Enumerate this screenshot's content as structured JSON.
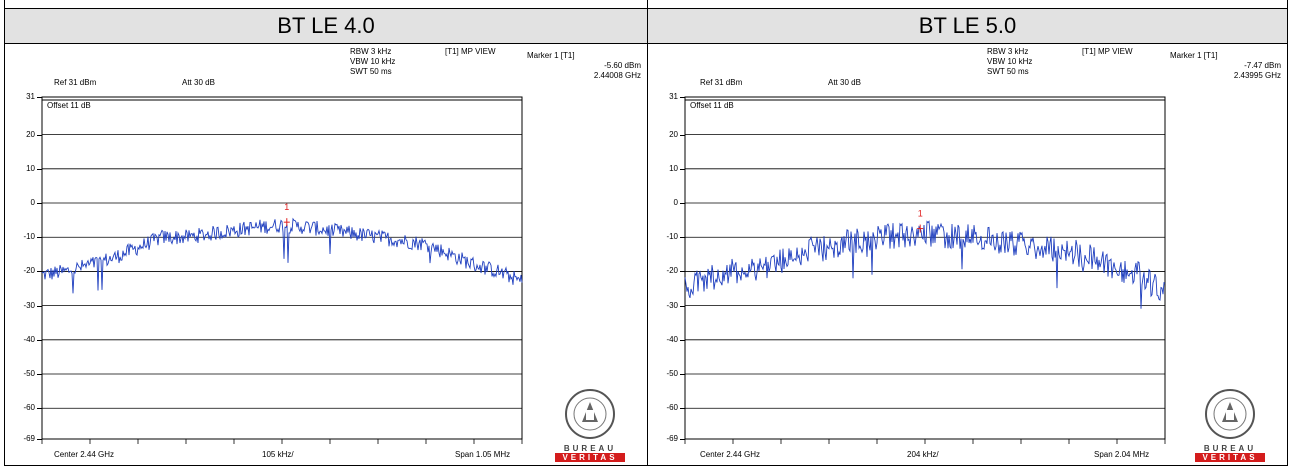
{
  "panels": [
    {
      "title": "BT LE 4.0",
      "ref": "Ref 31 dBm",
      "att": "Att  30 dB",
      "rbw": "RBW 3 kHz",
      "vbw": "VBW 10 kHz",
      "swt": "SWT 50 ms",
      "view": "[T1] MP VIEW",
      "marker_title": "Marker 1 [T1]",
      "marker_level": "-5.60 dBm",
      "marker_freq": "2.44008 GHz",
      "offset": "Offset 11 dB",
      "center": "Center 2.44 GHz",
      "per_div": "105 kHz/",
      "span": "Span 1.05 MHz",
      "marker_label": "1",
      "logo_text": "BUREAU VERITAS"
    },
    {
      "title": "BT LE 5.0",
      "ref": "Ref 31 dBm",
      "att": "Att  30 dB",
      "rbw": "RBW 3 kHz",
      "vbw": "VBW 10 kHz",
      "swt": "SWT 50 ms",
      "view": "[T1] MP VIEW",
      "marker_title": "Marker 1 [T1]",
      "marker_level": "-7.47 dBm",
      "marker_freq": "2.43995 GHz",
      "offset": "Offset 11 dB",
      "center": "Center 2.44 GHz",
      "per_div": "204 kHz/",
      "span": "Span 2.04 MHz",
      "marker_label": "1",
      "logo_text": "BUREAU VERITAS"
    }
  ],
  "chart_data": [
    {
      "type": "line",
      "title": "BT LE 4.0",
      "xlabel": "",
      "ylabel": "",
      "yticks": [
        "31",
        "20",
        "10",
        "0",
        "-10",
        "-20",
        "-30",
        "-40",
        "-50",
        "-60",
        "-69"
      ],
      "ylim": [
        -69,
        31
      ],
      "xlim": [
        -5,
        5
      ],
      "grid": true,
      "trace_color": "#1f3fbf",
      "marker_color": "#e02020",
      "marker": {
        "x": 0.1,
        "y": -5.6
      },
      "series": [
        {
          "x": [
            -5,
            -4.5,
            -4,
            -3.5,
            -3,
            -2.5,
            -2,
            -1.5,
            -1,
            -0.5,
            0,
            0.5,
            1,
            1.5,
            2,
            2.5,
            3,
            3.5,
            4,
            4.5,
            5
          ],
          "y": [
            -21,
            -20,
            -18,
            -16,
            -13,
            -10,
            -10,
            -9,
            -8,
            -7,
            -6.5,
            -7,
            -8,
            -9,
            -10,
            -11,
            -12,
            -15,
            -18,
            -20,
            -23
          ]
        }
      ]
    },
    {
      "type": "line",
      "title": "BT LE 5.0",
      "xlabel": "",
      "ylabel": "",
      "yticks": [
        "31",
        "20",
        "10",
        "0",
        "-10",
        "-20",
        "-30",
        "-40",
        "-50",
        "-60",
        "-69"
      ],
      "ylim": [
        -69,
        31
      ],
      "xlim": [
        -5,
        5
      ],
      "grid": true,
      "trace_color": "#1f3fbf",
      "marker_color": "#e02020",
      "marker": {
        "x": -0.1,
        "y": -7.47
      },
      "series": [
        {
          "x": [
            -5,
            -4.5,
            -4,
            -3.5,
            -3,
            -2.5,
            -2,
            -1.5,
            -1,
            -0.5,
            0,
            0.5,
            1,
            1.5,
            2,
            2.5,
            3,
            3.5,
            4,
            4.5,
            5
          ],
          "y": [
            -25,
            -22,
            -20,
            -19,
            -17,
            -14,
            -13,
            -11,
            -10,
            -9.5,
            -9,
            -9.5,
            -10,
            -11,
            -12,
            -13,
            -14,
            -16,
            -19,
            -21,
            -27
          ]
        }
      ]
    }
  ]
}
